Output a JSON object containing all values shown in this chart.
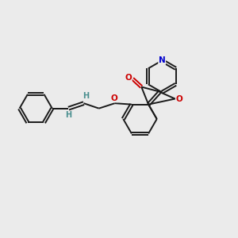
{
  "background_color": "#ebebeb",
  "bond_color": "#1a1a1a",
  "oxygen_color": "#cc0000",
  "nitrogen_color": "#0000cc",
  "vinyl_H_color": "#4a8f8f",
  "bond_width": 1.4,
  "figsize": [
    3.0,
    3.0
  ],
  "dpi": 100,
  "xlim": [
    0,
    10
  ],
  "ylim": [
    0,
    10
  ]
}
